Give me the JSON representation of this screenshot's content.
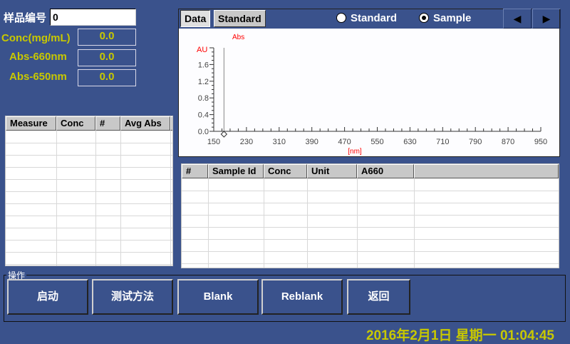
{
  "sample": {
    "label": "样品编号",
    "value": "0"
  },
  "fields": [
    {
      "label": "Conc(mg/mL)",
      "value": "0.0"
    },
    {
      "label": "Abs-660nm",
      "value": "0.0"
    },
    {
      "label": "Abs-650nm",
      "value": "0.0"
    }
  ],
  "left_table": {
    "columns": [
      "Measure",
      "Conc",
      "#",
      "Avg Abs"
    ],
    "rows": []
  },
  "chart_panel": {
    "tabs": [
      "Data",
      "Standard"
    ],
    "active_tab": "Data",
    "radios": [
      {
        "label": "Standard",
        "selected": false
      },
      {
        "label": "Sample",
        "selected": true
      }
    ],
    "prev_icon": "triangle-left",
    "next_icon": "triangle-right"
  },
  "chart_data": {
    "type": "line",
    "title": "Abs",
    "ylabel": "AU",
    "xlabel": "[nm]",
    "xlim": [
      150,
      950
    ],
    "ylim": [
      0,
      2.0
    ],
    "xticks": [
      "150",
      "230",
      "310",
      "390",
      "470",
      "550",
      "630",
      "710",
      "790",
      "870",
      "950"
    ],
    "yticks": [
      "0.0",
      "0.4",
      "0.8",
      "1.2",
      "1.6"
    ],
    "cursor_x": 175,
    "series": []
  },
  "right_table": {
    "columns": [
      "#",
      "Sample Id",
      "Conc",
      "Unit",
      "A660",
      ""
    ],
    "rows": []
  },
  "actions": {
    "group_label": "操作",
    "buttons": [
      "启动",
      "测试方法",
      "Blank",
      "Reblank",
      "返回"
    ]
  },
  "status": {
    "datetime": "2016年2月1日 星期一 01:04:45"
  },
  "colors": {
    "background": "#3a528c",
    "label": "#c8c800",
    "axis_label": "#ff0000"
  }
}
